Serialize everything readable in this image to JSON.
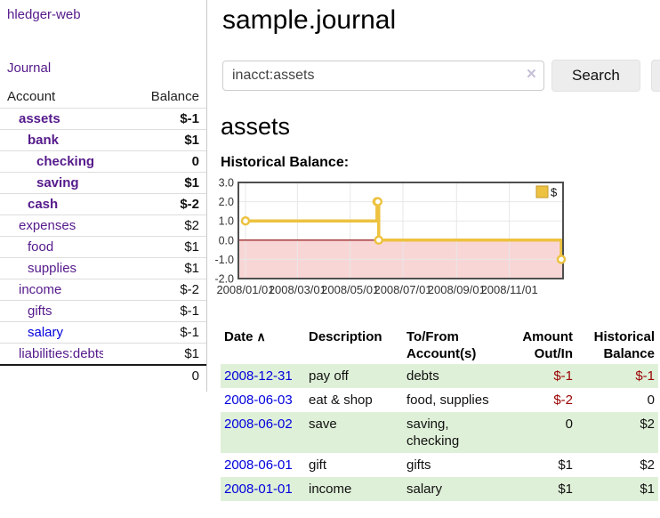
{
  "colors": {
    "link_purple": "#551a8b",
    "link_blue": "#0000dd",
    "neg_strong": "#990000",
    "neg_muted": "#c0626e",
    "row_green": "#dff0d8",
    "series_yellow": "#edc240",
    "legend_box_border": "#c6992f",
    "negative_region_pink": "#f9d6d6",
    "zero_line": "#880000",
    "chart_border": "#4f4f4f",
    "grid": "#e7e7e7"
  },
  "sidebar": {
    "app_title": "hledger-web",
    "nav_journal": "Journal",
    "accounts_table": {
      "col_account": "Account",
      "col_balance": "Balance",
      "rows": [
        {
          "name": "assets",
          "balance": "$-1",
          "indent": 1,
          "bold": true,
          "neg": "strong"
        },
        {
          "name": "bank",
          "balance": "$1",
          "indent": 2,
          "bold": true,
          "neg": "none"
        },
        {
          "name": "checking",
          "balance": "0",
          "indent": 3,
          "bold": true,
          "neg": "none"
        },
        {
          "name": "saving",
          "balance": "$1",
          "indent": 3,
          "bold": true,
          "neg": "none"
        },
        {
          "name": "cash",
          "balance": "$-2",
          "indent": 2,
          "bold": true,
          "neg": "strong"
        },
        {
          "name": "expenses",
          "balance": "$2",
          "indent": 1,
          "bold": false,
          "neg": "none"
        },
        {
          "name": "food",
          "balance": "$1",
          "indent": 2,
          "bold": false,
          "neg": "none"
        },
        {
          "name": "supplies",
          "balance": "$1",
          "indent": 2,
          "bold": false,
          "neg": "none"
        },
        {
          "name": "income",
          "balance": "$-2",
          "indent": 1,
          "bold": false,
          "neg": "muted"
        },
        {
          "name": "gifts",
          "balance": "$-1",
          "indent": 2,
          "bold": false,
          "neg": "muted"
        },
        {
          "name": "salary",
          "balance": "$-1",
          "indent": 2,
          "bold": false,
          "neg": "muted",
          "link_color": "blue"
        },
        {
          "name": "liabilities:debts",
          "balance": "$1",
          "indent": 1,
          "bold": false,
          "neg": "none"
        }
      ],
      "total": "0"
    }
  },
  "header": {
    "title": "sample.journal"
  },
  "search": {
    "query": "inacct:assets",
    "clear_icon": "×",
    "search_label": "Search",
    "help_label": "?"
  },
  "account_page": {
    "title": "assets",
    "chart_label": "Historical Balance:"
  },
  "chart_data": {
    "type": "line",
    "step": true,
    "series": [
      {
        "name": "$",
        "color": "#edc240",
        "points": [
          [
            "2008-01-01",
            1
          ],
          [
            "2008-06-01",
            2
          ],
          [
            "2008-06-02",
            2
          ],
          [
            "2008-06-03",
            0
          ],
          [
            "2008-12-31",
            -1
          ]
        ]
      }
    ],
    "x_ticks": [
      "2008/01/01",
      "2008/03/01",
      "2008/05/01",
      "2008/07/01",
      "2008/09/01",
      "2008/11/01"
    ],
    "y_ticks": [
      "3.0",
      "2.0",
      "1.0",
      "0.0",
      "-1.0",
      "-2.0"
    ],
    "ylim": [
      -2,
      3
    ],
    "xlim": [
      "2008-01-01",
      "2008-12-31"
    ],
    "legend": "$",
    "legend_position": "top-right",
    "grid": true,
    "negative_region_shaded": true
  },
  "register": {
    "columns": {
      "date": "Date",
      "description": "Description",
      "accounts": "To/From Account(s)",
      "amount": "Amount Out/In",
      "balance": "Historical Balance"
    },
    "sort_icon": "∧",
    "rows": [
      {
        "date": "2008-12-31",
        "description": "pay off",
        "accounts": "debts",
        "amount": "$-1",
        "balance": "$-1",
        "amount_neg": true,
        "balance_neg": true
      },
      {
        "date": "2008-06-03",
        "description": "eat & shop",
        "accounts": "food, supplies",
        "amount": "$-2",
        "balance": "0",
        "amount_neg": true,
        "balance_neg": false
      },
      {
        "date": "2008-06-02",
        "description": "save",
        "accounts": "saving, checking",
        "amount": "0",
        "balance": "$2",
        "amount_neg": false,
        "balance_neg": false
      },
      {
        "date": "2008-06-01",
        "description": "gift",
        "accounts": "gifts",
        "amount": "$1",
        "balance": "$2",
        "amount_neg": false,
        "balance_neg": false
      },
      {
        "date": "2008-01-01",
        "description": "income",
        "accounts": "salary",
        "amount": "$1",
        "balance": "$1",
        "amount_neg": false,
        "balance_neg": false
      }
    ]
  }
}
